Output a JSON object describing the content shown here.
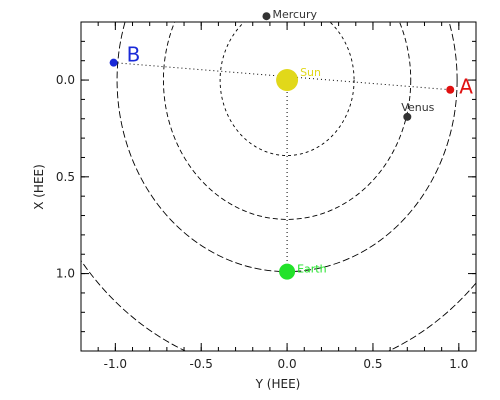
{
  "chart_data": {
    "type": "scatter",
    "title": "",
    "xlabel": "Y (HEE)",
    "ylabel": "X (HEE)",
    "xlim": [
      -1.2,
      1.1
    ],
    "ylim": [
      -0.3,
      1.4
    ],
    "y_inverted": true,
    "grid": false,
    "xticks": [
      "-1.0",
      "-0.5",
      "0.0",
      "0.5",
      "1.0"
    ],
    "xtick_values": [
      -1.0,
      -0.5,
      0.0,
      0.5,
      1.0
    ],
    "yticks": [
      "0.0",
      "0.5",
      "1.0"
    ],
    "ytick_values": [
      0.0,
      0.5,
      1.0
    ],
    "orbits": [
      {
        "radius": 0.39,
        "dash": "short"
      },
      {
        "radius": 0.72,
        "dash": "medium"
      },
      {
        "radius": 0.99,
        "dash": "long"
      },
      {
        "radius": 1.52,
        "dash": "long"
      }
    ],
    "points": [
      {
        "name": "Sun",
        "x": 0.0,
        "y": 0.0,
        "color": "#e1d81a",
        "size": "large"
      },
      {
        "name": "Mercury",
        "x": -0.12,
        "y": -0.33,
        "color": "#333333",
        "size": "small"
      },
      {
        "name": "Venus",
        "x": 0.7,
        "y": 0.19,
        "color": "#333333",
        "size": "small"
      },
      {
        "name": "Earth",
        "x": 0.0,
        "y": 0.99,
        "color": "#22e22a",
        "size": "medium"
      },
      {
        "name": "A",
        "x": 0.95,
        "y": 0.05,
        "color": "#e01010",
        "size": "small"
      },
      {
        "name": "B",
        "x": -1.01,
        "y": -0.09,
        "color": "#1a2ad8",
        "size": "small"
      }
    ],
    "lines": [
      {
        "from": "B",
        "to": "A",
        "style": "dotted"
      },
      {
        "from": "Sun",
        "to": "Earth",
        "style": "dotted"
      }
    ]
  }
}
